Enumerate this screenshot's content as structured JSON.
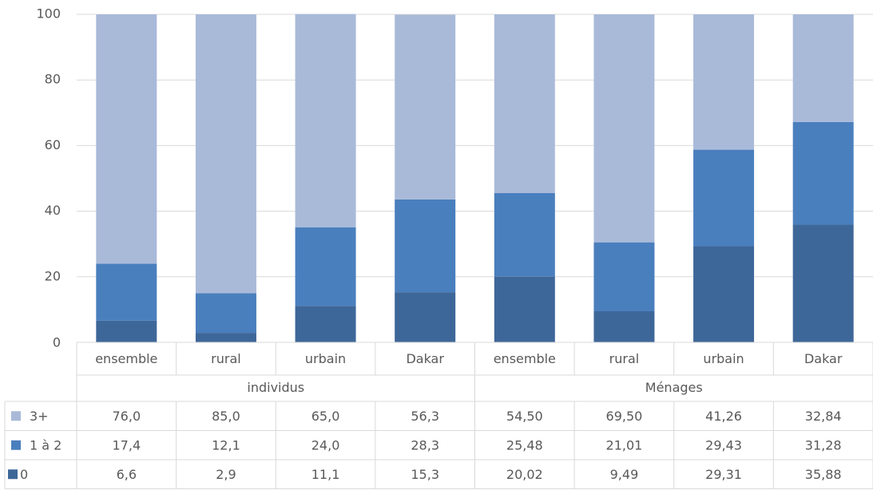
{
  "chart_data": {
    "type": "bar",
    "stacked": true,
    "ylim": [
      0,
      100
    ],
    "yticks": [
      0,
      20,
      40,
      60,
      80,
      100
    ],
    "grid": true,
    "groups": [
      {
        "label": "individus",
        "categories": [
          "ensemble",
          "rural",
          "urbain",
          "Dakar"
        ]
      },
      {
        "label": "Ménages",
        "categories": [
          "ensemble",
          "rural",
          "urbain",
          "Dakar"
        ]
      }
    ],
    "series": [
      {
        "name": "0",
        "color": "#3e6799",
        "values": [
          6.6,
          2.9,
          11.1,
          15.3,
          20.02,
          9.49,
          29.31,
          35.88
        ],
        "labels": [
          "6,6",
          "2,9",
          "11,1",
          "15,3",
          "20,02",
          "9,49",
          "29,31",
          "35,88"
        ]
      },
      {
        "name": "1 à 2",
        "color": "#4a7fbd",
        "values": [
          17.4,
          12.1,
          24.0,
          28.3,
          25.48,
          21.01,
          29.43,
          31.28
        ],
        "labels": [
          "17,4",
          "12,1",
          "24,0",
          "28,3",
          "25,48",
          "21,01",
          "29,43",
          "31,28"
        ]
      },
      {
        "name": "3+",
        "color": "#a9bad9",
        "values": [
          76.0,
          85.0,
          65.0,
          56.3,
          54.5,
          69.5,
          41.26,
          32.84
        ],
        "labels": [
          "76,0",
          "85,0",
          "65,0",
          "56,3",
          "54,50",
          "69,50",
          "41,26",
          "32,84"
        ]
      }
    ],
    "table_row_order": [
      "3+",
      "1 à 2",
      "0"
    ],
    "gridline_color": "#d9d9d9"
  }
}
